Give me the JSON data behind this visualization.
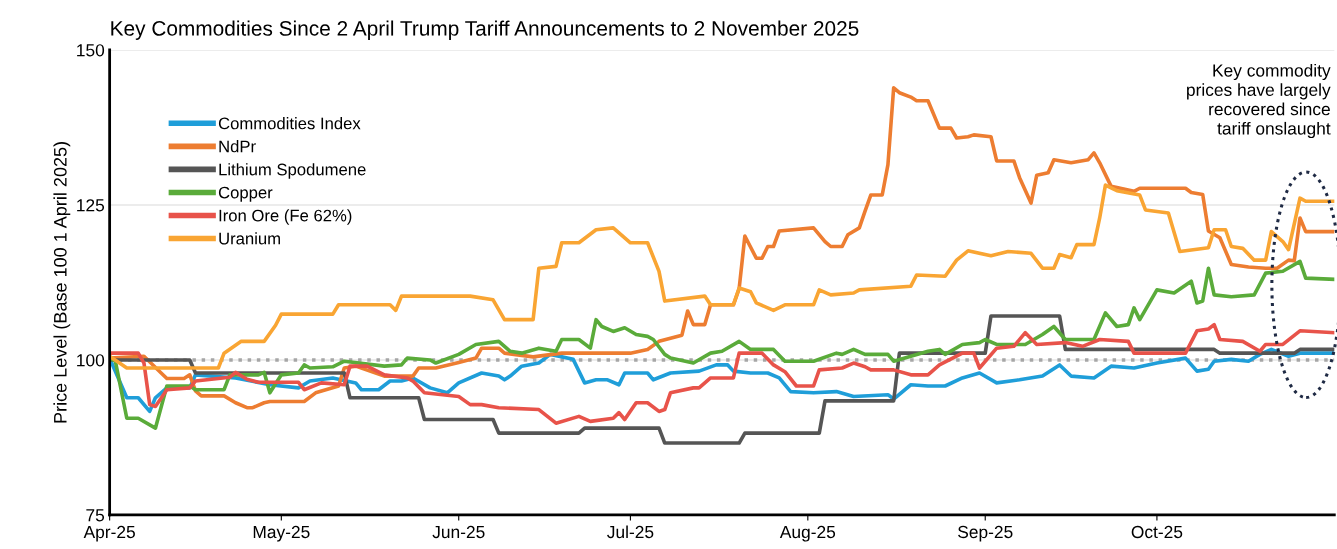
{
  "chart_data": {
    "type": "line",
    "title": "Key Commodities Since 2 April Trump Tariff Announcements to 2 November 2025",
    "ylabel": "Price Level (Base 100 1 April 2025)",
    "xlim": [
      "2025-04-01",
      "2025-11-01"
    ],
    "xticks": [
      {
        "value": "2025-04-01",
        "label": "Apr-25"
      },
      {
        "value": "2025-05-01",
        "label": "May-25"
      },
      {
        "value": "2025-06-01",
        "label": "Jun-25"
      },
      {
        "value": "2025-07-01",
        "label": "Jul-25"
      },
      {
        "value": "2025-08-01",
        "label": "Aug-25"
      },
      {
        "value": "2025-09-01",
        "label": "Sep-25"
      },
      {
        "value": "2025-10-01",
        "label": "Oct-25"
      }
    ],
    "ylim": [
      75,
      150
    ],
    "yticks": [
      75,
      100,
      125,
      150
    ],
    "grid": "y",
    "legend": "top left",
    "ref_lines": [
      {
        "axis": "y",
        "value": 100,
        "label": null,
        "color": "#a6a6a6",
        "line_style": "dotted"
      }
    ],
    "annotations": [
      "Key commodity\nprices have largely\nrecovered since\ntariff onslaught"
    ],
    "series": [
      {
        "name": "Commodities Index",
        "color": "#1f9ed9",
        "x": [
          "2025-04-01",
          "2025-04-04",
          "2025-04-06",
          "2025-04-08",
          "2025-04-09",
          "2025-04-11",
          "2025-04-15",
          "2025-04-16",
          "2025-04-23",
          "2025-04-29",
          "2025-05-04",
          "2025-05-06",
          "2025-05-10",
          "2025-05-14",
          "2025-05-15",
          "2025-05-18",
          "2025-05-20",
          "2025-05-22",
          "2025-05-24",
          "2025-05-27",
          "2025-05-30",
          "2025-06-01",
          "2025-06-05",
          "2025-06-08",
          "2025-06-09",
          "2025-06-10",
          "2025-06-12",
          "2025-06-15",
          "2025-06-17",
          "2025-06-21",
          "2025-06-23",
          "2025-06-25",
          "2025-06-27",
          "2025-06-29",
          "2025-06-30",
          "2025-07-04",
          "2025-07-05",
          "2025-07-08",
          "2025-07-13",
          "2025-07-16",
          "2025-07-18",
          "2025-07-19",
          "2025-07-22",
          "2025-07-25",
          "2025-07-27",
          "2025-07-29",
          "2025-08-02",
          "2025-08-06",
          "2025-08-09",
          "2025-08-15",
          "2025-08-16",
          "2025-08-19",
          "2025-08-22",
          "2025-08-25",
          "2025-08-28",
          "2025-08-31",
          "2025-09-03",
          "2025-09-07",
          "2025-09-11",
          "2025-09-14",
          "2025-09-16",
          "2025-09-20",
          "2025-09-23",
          "2025-09-27",
          "2025-10-01",
          "2025-10-06",
          "2025-10-08",
          "2025-10-10",
          "2025-10-11",
          "2025-10-14",
          "2025-10-17",
          "2025-10-19",
          "2025-10-21",
          "2025-10-24",
          "2025-10-26",
          "2025-11-01"
        ],
        "values": [
          100.3,
          93.9,
          93.9,
          91.7,
          93.9,
          95.5,
          95.5,
          97.6,
          97.1,
          96,
          95.5,
          96.6,
          97.1,
          96.3,
          95.2,
          95.2,
          96.6,
          96.6,
          97.1,
          95.5,
          94.7,
          96.3,
          97.9,
          97.4,
          96.8,
          97.4,
          99,
          99.5,
          100.9,
          100.1,
          96.3,
          96.8,
          96.8,
          96,
          97.9,
          97.9,
          96.8,
          97.9,
          98.2,
          99.2,
          99.2,
          98.2,
          97.9,
          97.9,
          97.1,
          94.9,
          94.7,
          94.9,
          94.1,
          94.4,
          93.7,
          96,
          95.8,
          95.8,
          97.1,
          97.9,
          96.3,
          96.8,
          97.4,
          99.2,
          97.4,
          97.1,
          99,
          98.7,
          99.5,
          100.3,
          98.2,
          98.5,
          99.8,
          100.1,
          99.8,
          100.9,
          101.7,
          100.6,
          101.1,
          101.1
        ]
      },
      {
        "name": "NdPr",
        "color": "#ed7d31",
        "x": [
          "2025-04-01",
          "2025-04-07",
          "2025-04-10",
          "2025-04-11",
          "2025-04-14",
          "2025-04-15",
          "2025-04-16",
          "2025-04-17",
          "2025-04-21",
          "2025-04-23",
          "2025-04-25",
          "2025-04-26",
          "2025-04-28",
          "2025-04-29",
          "2025-05-05",
          "2025-05-07",
          "2025-05-11",
          "2025-05-12",
          "2025-05-14",
          "2025-05-19",
          "2025-05-24",
          "2025-05-25",
          "2025-05-28",
          "2025-06-01",
          "2025-06-04",
          "2025-06-05",
          "2025-06-08",
          "2025-06-09",
          "2025-06-14",
          "2025-06-19",
          "2025-07-01",
          "2025-07-04",
          "2025-07-06",
          "2025-07-10",
          "2025-07-11",
          "2025-07-12",
          "2025-07-14",
          "2025-07-15",
          "2025-07-19",
          "2025-07-20",
          "2025-07-21",
          "2025-07-23",
          "2025-07-24",
          "2025-07-25",
          "2025-07-26",
          "2025-07-27",
          "2025-08-02",
          "2025-08-04",
          "2025-08-05",
          "2025-08-07",
          "2025-08-08",
          "2025-08-10",
          "2025-08-11",
          "2025-08-12",
          "2025-08-14",
          "2025-08-15",
          "2025-08-16",
          "2025-08-17",
          "2025-08-19",
          "2025-08-20",
          "2025-08-22",
          "2025-08-24",
          "2025-08-26",
          "2025-08-27",
          "2025-08-29",
          "2025-08-30",
          "2025-09-02",
          "2025-09-03",
          "2025-09-06",
          "2025-09-07",
          "2025-09-09",
          "2025-09-10",
          "2025-09-12",
          "2025-09-13",
          "2025-09-16",
          "2025-09-19",
          "2025-09-20",
          "2025-09-21",
          "2025-09-23",
          "2025-09-27",
          "2025-09-28",
          "2025-10-06",
          "2025-10-07",
          "2025-10-09",
          "2025-10-10",
          "2025-10-12",
          "2025-10-14",
          "2025-10-17",
          "2025-10-20",
          "2025-10-22",
          "2025-10-24",
          "2025-10-25",
          "2025-10-26",
          "2025-10-27",
          "2025-11-01"
        ],
        "values": [
          100.3,
          100.6,
          97.9,
          97,
          97,
          97.6,
          95,
          94.2,
          94.2,
          93.1,
          92.3,
          92.3,
          93.1,
          93.3,
          93.3,
          94.7,
          95.8,
          98.7,
          99,
          97.4,
          97.4,
          98.7,
          98.7,
          99.6,
          100.3,
          101.9,
          101.9,
          101.1,
          100.5,
          101.1,
          101.1,
          101.7,
          103,
          104,
          107.9,
          105.7,
          105.7,
          108.9,
          108.9,
          111.5,
          120,
          116.4,
          116.4,
          118.3,
          118.3,
          120.8,
          121.3,
          119.1,
          118.3,
          118.3,
          120.2,
          121.3,
          124,
          126.6,
          126.6,
          131.5,
          143.9,
          143.1,
          142.4,
          141.8,
          141.8,
          137.4,
          137.4,
          135.8,
          136,
          136.3,
          136,
          132.1,
          132.1,
          129.4,
          125.3,
          129.8,
          130.2,
          132.3,
          131.8,
          132.3,
          133.4,
          131.8,
          128,
          127.2,
          127.7,
          127.7,
          127,
          126.7,
          120.8,
          119.7,
          115.4,
          115,
          114.8,
          114.8,
          116.1,
          116,
          122.9,
          120.7,
          120.7
        ]
      },
      {
        "name": "Lithium Spodumene",
        "color": "#555555",
        "x": [
          "2025-04-01",
          "2025-04-15",
          "2025-04-16",
          "2025-05-12",
          "2025-05-13",
          "2025-05-25",
          "2025-05-26",
          "2025-06-07",
          "2025-06-08",
          "2025-06-22",
          "2025-06-23",
          "2025-07-06",
          "2025-07-07",
          "2025-07-20",
          "2025-07-21",
          "2025-08-03",
          "2025-08-04",
          "2025-08-16",
          "2025-08-17",
          "2025-09-01",
          "2025-09-02",
          "2025-09-14",
          "2025-09-15",
          "2025-10-11",
          "2025-10-12",
          "2025-10-25",
          "2025-10-26",
          "2025-11-01"
        ],
        "values": [
          100,
          100,
          97.9,
          97.9,
          93.9,
          93.9,
          90.4,
          90.4,
          88.2,
          88.2,
          89,
          89,
          86.6,
          86.6,
          88.2,
          88.2,
          93.4,
          93.4,
          101.1,
          101.1,
          107.1,
          107.1,
          101.7,
          101.7,
          101.1,
          101.1,
          101.7,
          101.7
        ]
      },
      {
        "name": "Copper",
        "color": "#5aab3a",
        "x": [
          "2025-04-01",
          "2025-04-02",
          "2025-04-04",
          "2025-04-06",
          "2025-04-09",
          "2025-04-11",
          "2025-04-15",
          "2025-04-16",
          "2025-04-21",
          "2025-04-22",
          "2025-04-27",
          "2025-04-28",
          "2025-04-29",
          "2025-05-01",
          "2025-05-04",
          "2025-05-05",
          "2025-05-06",
          "2025-05-10",
          "2025-05-12",
          "2025-05-19",
          "2025-05-22",
          "2025-05-23",
          "2025-05-27",
          "2025-05-28",
          "2025-06-01",
          "2025-06-04",
          "2025-06-08",
          "2025-06-10",
          "2025-06-12",
          "2025-06-15",
          "2025-06-18",
          "2025-06-19",
          "2025-06-22",
          "2025-06-24",
          "2025-06-25",
          "2025-06-26",
          "2025-06-28",
          "2025-06-30",
          "2025-07-02",
          "2025-07-04",
          "2025-07-05",
          "2025-07-07",
          "2025-07-08",
          "2025-07-12",
          "2025-07-15",
          "2025-07-17",
          "2025-07-20",
          "2025-07-22",
          "2025-07-26",
          "2025-07-28",
          "2025-08-02",
          "2025-08-06",
          "2025-08-07",
          "2025-08-09",
          "2025-08-11",
          "2025-08-15",
          "2025-08-16",
          "2025-08-19",
          "2025-08-22",
          "2025-08-24",
          "2025-08-25",
          "2025-08-28",
          "2025-08-31",
          "2025-09-01",
          "2025-09-03",
          "2025-09-08",
          "2025-09-11",
          "2025-09-13",
          "2025-09-15",
          "2025-09-20",
          "2025-09-22",
          "2025-09-24",
          "2025-09-26",
          "2025-09-27",
          "2025-09-28",
          "2025-10-01",
          "2025-10-04",
          "2025-10-07",
          "2025-10-08",
          "2025-10-09",
          "2025-10-10",
          "2025-10-11",
          "2025-10-14",
          "2025-10-18",
          "2025-10-20",
          "2025-10-23",
          "2025-10-26",
          "2025-10-27",
          "2025-11-01"
        ],
        "values": [
          100.3,
          99.8,
          90.6,
          90.6,
          89,
          95.8,
          95.8,
          95.2,
          95.2,
          97.6,
          97.6,
          98,
          94.7,
          97.6,
          97.9,
          99.2,
          98.7,
          98.9,
          99.8,
          99,
          99.2,
          100.3,
          100,
          99.5,
          100.9,
          102.5,
          103,
          101.4,
          101.1,
          101.9,
          101.4,
          103.3,
          103.3,
          101.9,
          106.5,
          105.4,
          104.6,
          105.2,
          104.1,
          103.8,
          103.3,
          100.9,
          100.3,
          99.5,
          101.1,
          101.4,
          103,
          101.7,
          101.7,
          99.8,
          99.8,
          101.1,
          100.9,
          101.7,
          100.9,
          100.9,
          99.8,
          100.6,
          101.4,
          101.7,
          100.9,
          102.5,
          102.8,
          103.3,
          102.5,
          102.5,
          104.1,
          105.4,
          103.3,
          103.3,
          107.6,
          105.4,
          105.7,
          108.4,
          106.5,
          111.3,
          110.8,
          112.7,
          109.2,
          109.5,
          114.8,
          110.5,
          110.2,
          110.5,
          114,
          114.3,
          115.9,
          113.2,
          113
        ]
      },
      {
        "name": "Iron Ore (Fe 62%)",
        "color": "#e8534a",
        "x": [
          "2025-04-01",
          "2025-04-06",
          "2025-04-07",
          "2025-04-08",
          "2025-04-09",
          "2025-04-11",
          "2025-04-15",
          "2025-04-16",
          "2025-04-22",
          "2025-04-23",
          "2025-04-25",
          "2025-04-27",
          "2025-05-04",
          "2025-05-05",
          "2025-05-08",
          "2025-05-12",
          "2025-05-13",
          "2025-05-16",
          "2025-05-19",
          "2025-05-23",
          "2025-05-24",
          "2025-05-26",
          "2025-06-01",
          "2025-06-03",
          "2025-06-05",
          "2025-06-08",
          "2025-06-15",
          "2025-06-18",
          "2025-06-22",
          "2025-06-24",
          "2025-06-28",
          "2025-06-29",
          "2025-06-30",
          "2025-07-02",
          "2025-07-04",
          "2025-07-06",
          "2025-07-07",
          "2025-07-08",
          "2025-07-12",
          "2025-07-13",
          "2025-07-15",
          "2025-07-19",
          "2025-07-20",
          "2025-07-24",
          "2025-07-26",
          "2025-07-28",
          "2025-07-30",
          "2025-08-02",
          "2025-08-03",
          "2025-08-07",
          "2025-08-09",
          "2025-08-11",
          "2025-08-12",
          "2025-08-16",
          "2025-08-19",
          "2025-08-22",
          "2025-08-24",
          "2025-08-28",
          "2025-08-30",
          "2025-08-31",
          "2025-09-03",
          "2025-09-06",
          "2025-09-08",
          "2025-09-10",
          "2025-09-15",
          "2025-09-18",
          "2025-09-21",
          "2025-09-26",
          "2025-09-27",
          "2025-10-06",
          "2025-10-08",
          "2025-10-10",
          "2025-10-11",
          "2025-10-12",
          "2025-10-16",
          "2025-10-19",
          "2025-10-20",
          "2025-10-23",
          "2025-10-26",
          "2025-11-01"
        ],
        "values": [
          101.1,
          101.1,
          99.5,
          92.8,
          92.5,
          95.2,
          95.5,
          96.6,
          97.2,
          98,
          96.9,
          96.4,
          96.4,
          95.2,
          96.3,
          96,
          99,
          99,
          97.6,
          97.1,
          96.6,
          94.7,
          94.1,
          92.8,
          92.8,
          92.3,
          92,
          89.8,
          90.9,
          90.1,
          90.6,
          91.5,
          90.4,
          93.1,
          93.1,
          91.7,
          92,
          94.7,
          95.5,
          95.5,
          97.1,
          97.1,
          101.1,
          101.1,
          99.2,
          98.1,
          95.8,
          95.8,
          98.4,
          98.7,
          99.5,
          98.9,
          98.4,
          98.4,
          97.6,
          97.6,
          99.2,
          101.1,
          101.1,
          98.7,
          101.9,
          102.2,
          104.4,
          102.5,
          102.8,
          102.2,
          103.3,
          103,
          101.1,
          101.1,
          104.7,
          105,
          105.7,
          103.3,
          103,
          101.4,
          102.5,
          102.5,
          104.7,
          104.4
        ]
      },
      {
        "name": "Uranium",
        "color": "#f9a533",
        "x": [
          "2025-04-01",
          "2025-04-04",
          "2025-04-20",
          "2025-04-21",
          "2025-04-24",
          "2025-04-28",
          "2025-04-30",
          "2025-05-01",
          "2025-05-10",
          "2025-05-11",
          "2025-05-20",
          "2025-05-21",
          "2025-05-22",
          "2025-06-03",
          "2025-06-07",
          "2025-06-09",
          "2025-06-14",
          "2025-06-15",
          "2025-06-18",
          "2025-06-19",
          "2025-06-22",
          "2025-06-25",
          "2025-06-28",
          "2025-06-30",
          "2025-07-01",
          "2025-07-04",
          "2025-07-06",
          "2025-07-07",
          "2025-07-14",
          "2025-07-15",
          "2025-07-19",
          "2025-07-20",
          "2025-07-22",
          "2025-07-23",
          "2025-07-26",
          "2025-07-28",
          "2025-08-02",
          "2025-08-03",
          "2025-08-05",
          "2025-08-09",
          "2025-08-10",
          "2025-08-19",
          "2025-08-20",
          "2025-08-25",
          "2025-08-27",
          "2025-08-29",
          "2025-09-02",
          "2025-09-05",
          "2025-09-09",
          "2025-09-11",
          "2025-09-13",
          "2025-09-14",
          "2025-09-16",
          "2025-09-17",
          "2025-09-20",
          "2025-09-21",
          "2025-09-22",
          "2025-09-24",
          "2025-09-28",
          "2025-09-29",
          "2025-10-03",
          "2025-10-05",
          "2025-10-10",
          "2025-10-11",
          "2025-10-13",
          "2025-10-14",
          "2025-10-16",
          "2025-10-18",
          "2025-10-20",
          "2025-10-21",
          "2025-10-23",
          "2025-10-24",
          "2025-10-26",
          "2025-10-27",
          "2025-11-01"
        ],
        "values": [
          100.6,
          98.7,
          98.7,
          101.1,
          103,
          103,
          105.6,
          107.4,
          107.4,
          108.9,
          108.9,
          108,
          110.3,
          110.3,
          109.7,
          106.5,
          106.5,
          114.8,
          115.1,
          118.9,
          118.9,
          121,
          121.3,
          119.7,
          118.9,
          118.9,
          114.3,
          109.5,
          110.3,
          108.9,
          108.9,
          111.6,
          111,
          109.2,
          108,
          108.9,
          108.9,
          111.3,
          110.5,
          110.8,
          111.3,
          111.9,
          113.7,
          113.5,
          116.1,
          117.6,
          116.8,
          117.5,
          117.2,
          114.8,
          114.8,
          117,
          116.5,
          118.6,
          118.6,
          122.9,
          128.2,
          127.3,
          126.6,
          124.2,
          123.7,
          117.5,
          118.1,
          121,
          121,
          118.3,
          118,
          116.1,
          116.1,
          120.7,
          119.1,
          117.8,
          126.1,
          125.6,
          125.6
        ]
      }
    ]
  }
}
